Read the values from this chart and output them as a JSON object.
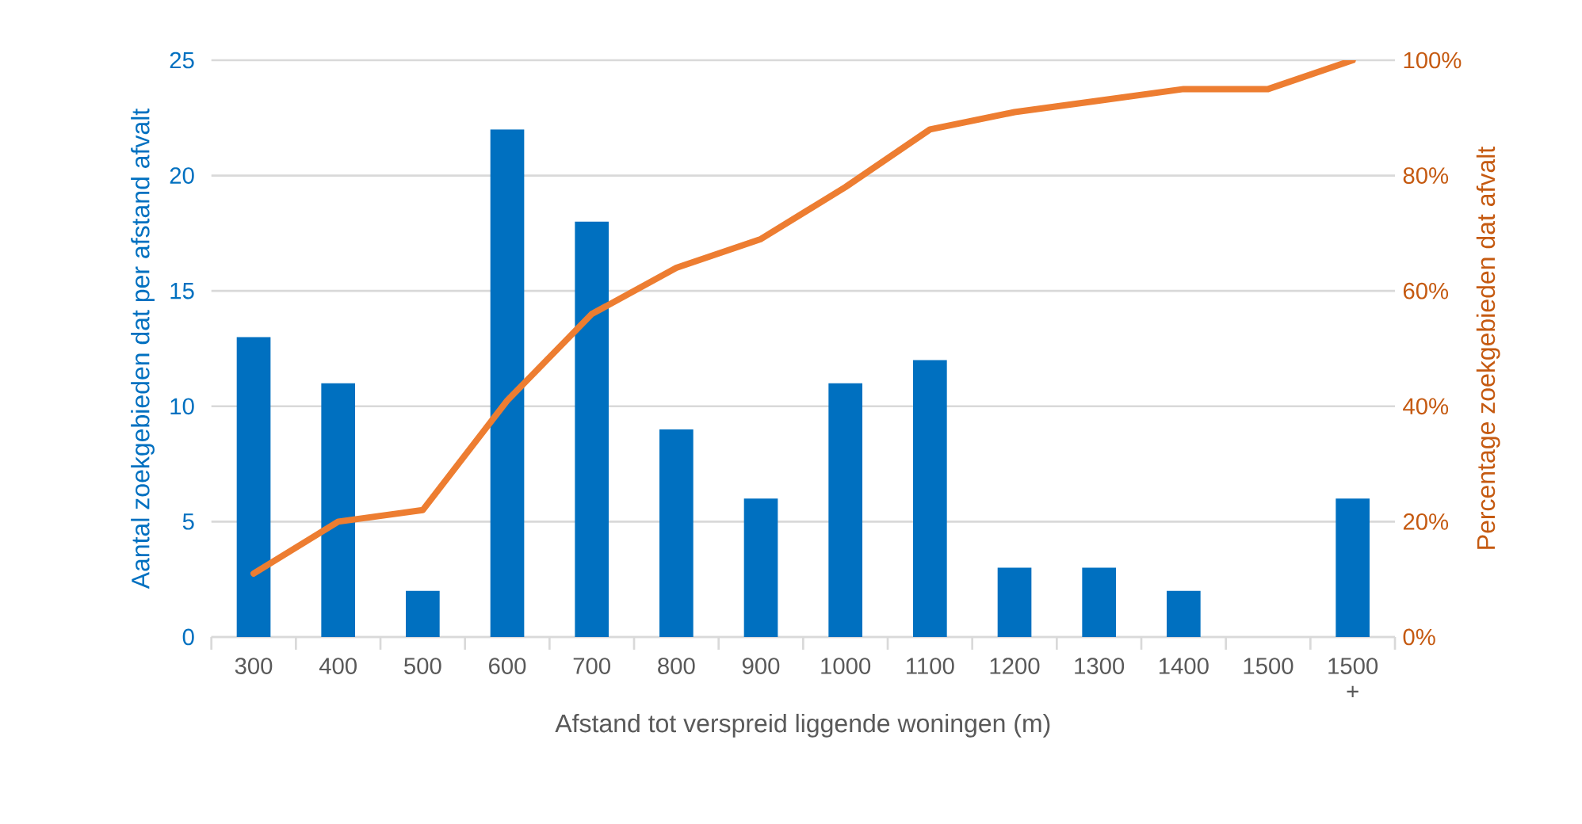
{
  "chart_data": {
    "type": "bar",
    "xlabel": "Afstand tot verspreid liggende woningen (m)",
    "ylabel": "Aantal zoekgebieden dat per afstand afvalt",
    "y2label": "Percentage zoekgebieden dat afvalt",
    "categories": [
      "300",
      "400",
      "500",
      "600",
      "700",
      "800",
      "900",
      "1000",
      "1100",
      "1200",
      "1300",
      "1400",
      "1500",
      "1500 +"
    ],
    "series": [
      {
        "color": "#0070c0",
        "values": [
          13,
          11,
          2,
          22,
          18,
          9,
          6,
          11,
          12,
          3,
          3,
          2,
          0,
          6
        ]
      },
      {
        "type": "line",
        "axis": "y2",
        "color": "#ed7d31",
        "values": [
          11,
          20,
          22,
          41,
          56,
          64,
          69,
          78,
          88,
          91,
          93,
          95,
          95,
          100
        ]
      }
    ],
    "ylim": [
      0,
      25
    ],
    "yticks": [
      0,
      5,
      10,
      15,
      20,
      25
    ],
    "y2lim": [
      0,
      100
    ],
    "y2ticks": [
      {
        "value": 0,
        "label": "0%"
      },
      {
        "value": 20,
        "label": "20%"
      },
      {
        "value": 40,
        "label": "40%"
      },
      {
        "value": 60,
        "label": "60%"
      },
      {
        "value": 80,
        "label": "80%"
      },
      {
        "value": 100,
        "label": "100%"
      }
    ],
    "grid": "y"
  }
}
